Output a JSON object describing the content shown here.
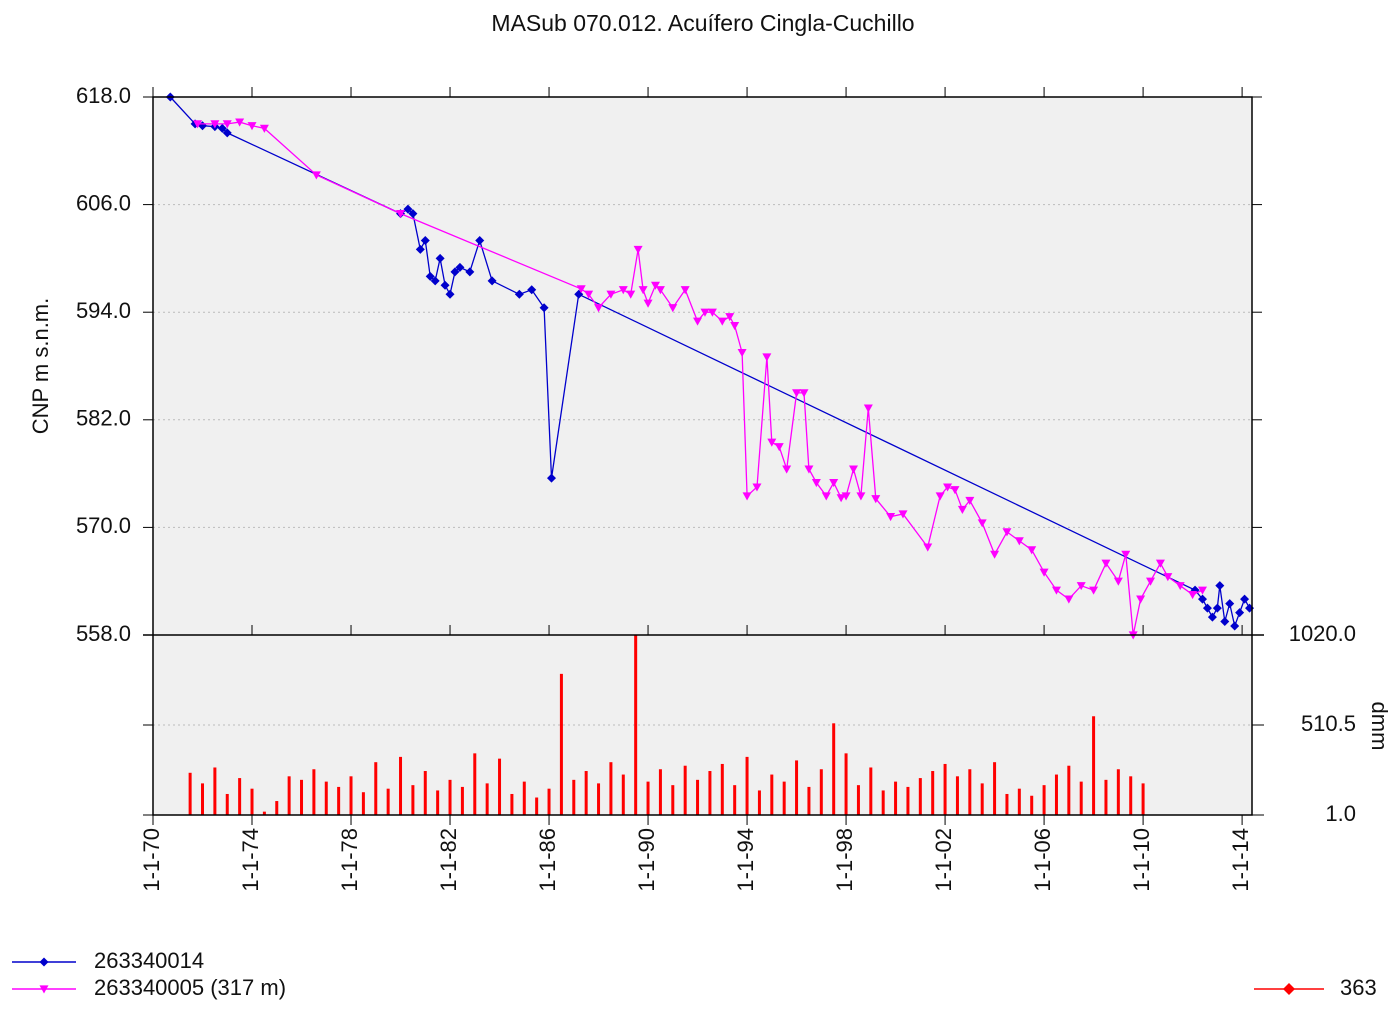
{
  "chart_data": [
    {
      "type": "line",
      "title": "MASub 070.012. Acuífero Cingla-Cuchillo",
      "y_label": "CNP m s.n.m.",
      "xlim": [
        1970,
        2014.4
      ],
      "ylim": [
        558,
        618
      ],
      "yticks": [
        {
          "value": 558,
          "label": "558.0"
        },
        {
          "value": 570,
          "label": "570.0"
        },
        {
          "value": 582,
          "label": "582.0"
        },
        {
          "value": 594,
          "label": "594.0"
        },
        {
          "value": 606,
          "label": "606.0"
        },
        {
          "value": 618,
          "label": "618.0"
        }
      ],
      "grid": true,
      "series": [
        {
          "name": "263340014",
          "color": "#0000cc",
          "marker": "diamond",
          "x": [
            1970.7,
            1971.7,
            1972,
            1972.5,
            1972.8,
            1973,
            1980,
            1980.3,
            1980.5,
            1980.8,
            1981,
            1981.2,
            1981.4,
            1981.6,
            1981.8,
            1982,
            1982.2,
            1982.4,
            1982.8,
            1983.2,
            1983.7,
            1984.8,
            1985.3,
            1985.8,
            1986.1,
            1987.2,
            2012.1,
            2012.4,
            2012.6,
            2012.8,
            2013,
            2013.1,
            2013.3,
            2013.5,
            2013.7,
            2013.9,
            2014.1,
            2014.3
          ],
          "values": [
            618,
            615,
            614.8,
            614.7,
            614.5,
            614,
            605,
            605.5,
            605,
            601,
            602,
            598,
            597.5,
            600,
            597,
            596,
            598.5,
            599,
            598.5,
            602,
            597.5,
            596,
            596.5,
            594.5,
            575.5,
            596,
            563,
            562,
            561,
            560,
            561,
            563.5,
            559.5,
            561.5,
            559,
            560.5,
            562,
            561
          ]
        },
        {
          "name": "263340005 (317 m)",
          "color": "#ff00ff",
          "marker": "triangle-down",
          "x": [
            1971.8,
            1972.5,
            1973,
            1973.5,
            1974,
            1974.5,
            1976.6,
            1980,
            1987.3,
            1987.6,
            1988,
            1988.5,
            1989,
            1989.3,
            1989.6,
            1989.8,
            1990,
            1990.3,
            1990.5,
            1991,
            1991.5,
            1992,
            1992.3,
            1992.6,
            1993,
            1993.3,
            1993.5,
            1993.8,
            1994,
            1994.4,
            1994.8,
            1995,
            1995.3,
            1995.6,
            1996,
            1996.3,
            1996.5,
            1996.8,
            1997.2,
            1997.5,
            1997.8,
            1998,
            1998.3,
            1998.6,
            1998.9,
            1999.2,
            1999.8,
            2000.3,
            2001.3,
            2001.8,
            2002.1,
            2002.4,
            2002.7,
            2003,
            2003.5,
            2004,
            2004.5,
            2005,
            2005.5,
            2006,
            2006.5,
            2007,
            2007.5,
            2008,
            2008.5,
            2009,
            2009.3,
            2009.6,
            2009.9,
            2010.3,
            2010.7,
            2011,
            2011.5,
            2012,
            2012.4
          ],
          "values": [
            615,
            615,
            615,
            615.2,
            614.8,
            614.5,
            609.3,
            605,
            596.6,
            596,
            594.5,
            596,
            596.5,
            596,
            601,
            596.5,
            595,
            597,
            596.5,
            594.5,
            596.5,
            593,
            594,
            594,
            593,
            593.5,
            592.5,
            589.5,
            573.5,
            574.5,
            589,
            579.5,
            579,
            576.5,
            585,
            585,
            576.5,
            575,
            573.5,
            575,
            573.3,
            573.5,
            576.5,
            573.5,
            583.3,
            573.2,
            571.2,
            571.5,
            567.8,
            573.5,
            574.5,
            574.2,
            572,
            573,
            570.5,
            567,
            569.5,
            568.5,
            567.5,
            565,
            563,
            562,
            563.5,
            563,
            566,
            564,
            567,
            558,
            562,
            564,
            566,
            564.5,
            563.5,
            562.5,
            563
          ]
        }
      ]
    },
    {
      "type": "bar",
      "y_label": "dmm",
      "xlim": [
        1970,
        2014.4
      ],
      "xticks": [
        {
          "value": 1970,
          "label": "1-1-70"
        },
        {
          "value": 1974,
          "label": "1-1-74"
        },
        {
          "value": 1978,
          "label": "1-1-78"
        },
        {
          "value": 1982,
          "label": "1-1-82"
        },
        {
          "value": 1986,
          "label": "1-1-86"
        },
        {
          "value": 1990,
          "label": "1-1-90"
        },
        {
          "value": 1994,
          "label": "1-1-94"
        },
        {
          "value": 1998,
          "label": "1-1-98"
        },
        {
          "value": 2002,
          "label": "1-1-02"
        },
        {
          "value": 2006,
          "label": "1-1-06"
        },
        {
          "value": 2010,
          "label": "1-1-10"
        },
        {
          "value": 2014,
          "label": "1-1-14"
        }
      ],
      "y2lim": [
        1,
        1020
      ],
      "y2ticks": [
        {
          "value": 1,
          "label": "1.0"
        },
        {
          "value": 510.5,
          "label": "510.5"
        },
        {
          "value": 1020,
          "label": "1020.0"
        }
      ],
      "series": [
        {
          "name": "363",
          "color": "#ff0000",
          "axis": "y2",
          "x": [
            1971.5,
            1972,
            1972.5,
            1973,
            1973.5,
            1974,
            1974.5,
            1975,
            1975.5,
            1976,
            1976.5,
            1977,
            1977.5,
            1978,
            1978.5,
            1979,
            1979.5,
            1980,
            1980.5,
            1981,
            1981.5,
            1982,
            1982.5,
            1983,
            1983.5,
            1984,
            1984.5,
            1985,
            1985.5,
            1986,
            1986.5,
            1987,
            1987.5,
            1988,
            1988.5,
            1989,
            1989.5,
            1990,
            1990.5,
            1991,
            1991.5,
            1992,
            1992.5,
            1993,
            1993.5,
            1994,
            1994.5,
            1995,
            1995.5,
            1996,
            1996.5,
            1997,
            1997.5,
            1998,
            1998.5,
            1999,
            1999.5,
            2000,
            2000.5,
            2001,
            2001.5,
            2002,
            2002.5,
            2003,
            2003.5,
            2004,
            2004.5,
            2005,
            2005.5,
            2006,
            2006.5,
            2007,
            2007.5,
            2008,
            2008.5,
            2009,
            2009.5,
            2010
          ],
          "values": [
            240,
            180,
            270,
            120,
            210,
            150,
            20,
            80,
            220,
            200,
            260,
            190,
            160,
            220,
            130,
            300,
            150,
            330,
            170,
            250,
            140,
            200,
            160,
            350,
            180,
            320,
            120,
            190,
            100,
            150,
            800,
            200,
            250,
            180,
            300,
            230,
            1020,
            190,
            260,
            170,
            280,
            200,
            250,
            290,
            170,
            330,
            140,
            230,
            190,
            310,
            160,
            260,
            520,
            350,
            170,
            270,
            140,
            190,
            160,
            210,
            250,
            290,
            220,
            260,
            180,
            300,
            120,
            150,
            110,
            170,
            230,
            280,
            190,
            560,
            200,
            260,
            220,
            180
          ]
        }
      ]
    }
  ]
}
